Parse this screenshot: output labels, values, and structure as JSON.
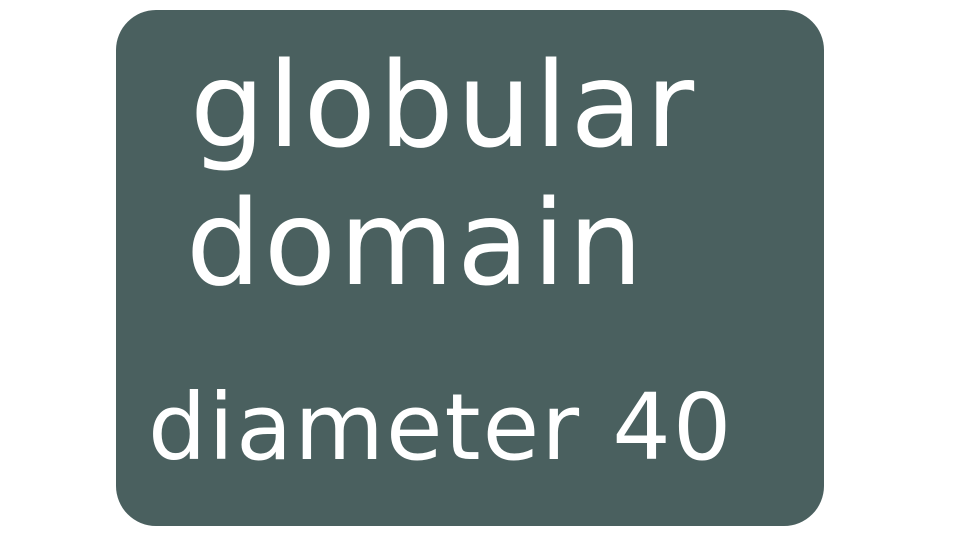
{
  "label": {
    "line1": "globular",
    "line2": "domain",
    "line3": "diameter 40"
  },
  "colors": {
    "box_fill": "#4a605f",
    "text": "#ffffff",
    "background": "#ffffff"
  }
}
